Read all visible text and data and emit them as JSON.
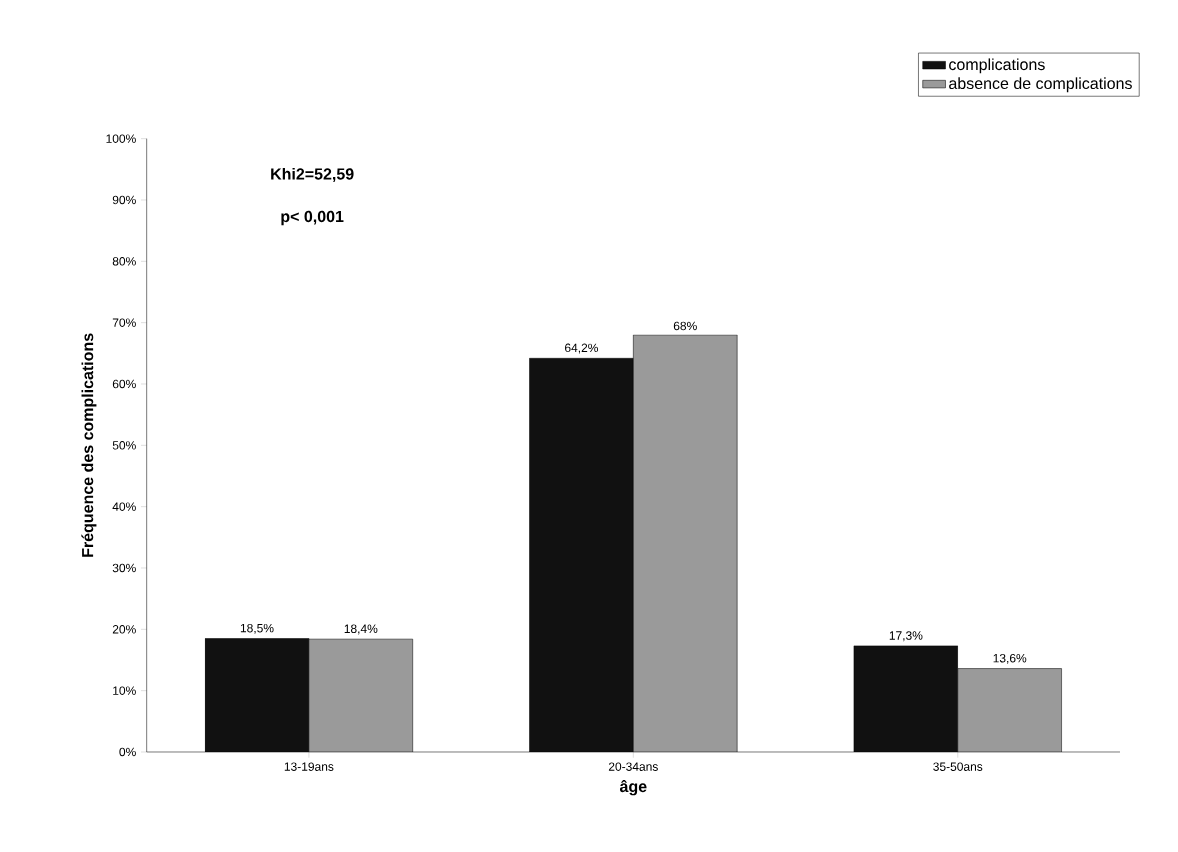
{
  "chart_data": {
    "type": "bar",
    "xlabel": "âge",
    "ylabel": "Fréquence des complications",
    "categories": [
      "13-19ans",
      "20-34ans",
      "35-50ans"
    ],
    "series": [
      {
        "name": "complications",
        "color": "#111111",
        "values": [
          18.5,
          64.2,
          17.3
        ],
        "value_labels": [
          "18,5%",
          "64,2%",
          "17,3%"
        ]
      },
      {
        "name": "absence de complications",
        "color": "#9a9a9a",
        "values": [
          18.4,
          68,
          13.6
        ],
        "value_labels": [
          "18,4%",
          "68%",
          "13,6%"
        ]
      }
    ],
    "ylim": [
      0,
      100
    ],
    "yticks": [
      {
        "value": 0,
        "label": "0%"
      },
      {
        "value": 10,
        "label": "10%"
      },
      {
        "value": 20,
        "label": "20%"
      },
      {
        "value": 30,
        "label": "30%"
      },
      {
        "value": 40,
        "label": "40%"
      },
      {
        "value": 50,
        "label": "50%"
      },
      {
        "value": 60,
        "label": "60%"
      },
      {
        "value": 70,
        "label": "70%"
      },
      {
        "value": 80,
        "label": "80%"
      },
      {
        "value": 90,
        "label": "90%"
      },
      {
        "value": 100,
        "label": "100%"
      }
    ],
    "annotations": [
      "Khi2=52,59",
      "p< 0,001"
    ],
    "legend": "top right",
    "grid": false
  }
}
